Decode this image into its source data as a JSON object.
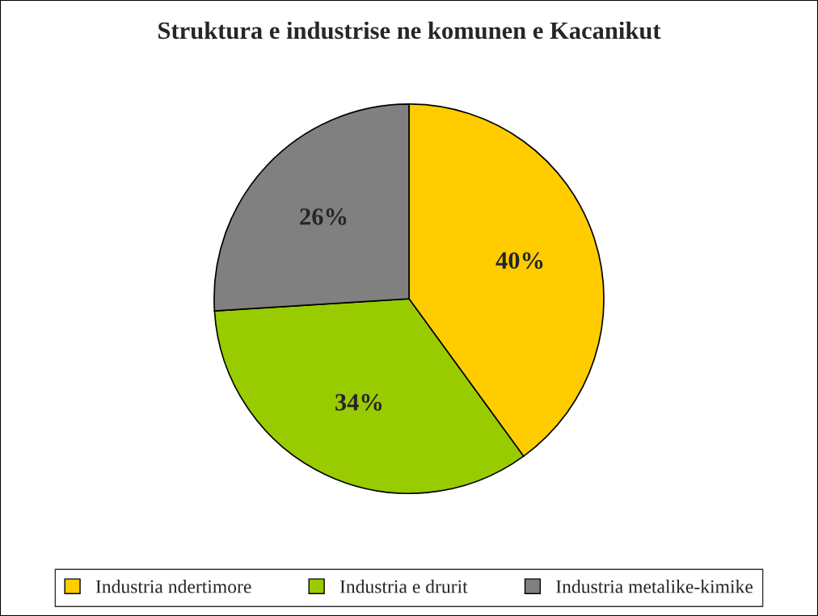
{
  "chart_data": {
    "type": "pie",
    "title": "Struktura e industrise ne komunen e Kacanikut",
    "categories": [
      "Industria ndertimore",
      "Industria e drurit",
      "Industria metalike-kimike"
    ],
    "values": [
      40,
      34,
      26
    ],
    "value_labels": [
      "40%",
      "34%",
      "26%"
    ],
    "colors": [
      "#ffcc00",
      "#99cc00",
      "#808080"
    ],
    "legend": "bottom"
  }
}
